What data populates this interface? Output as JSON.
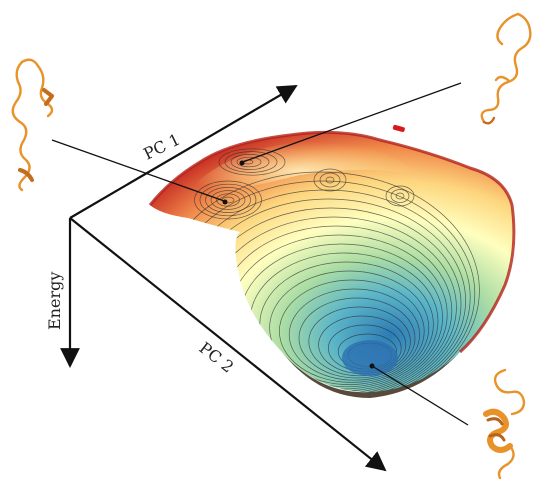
{
  "axes": {
    "pc1_label": "PC 1",
    "pc2_label": "PC 2",
    "energy_label": "Energy"
  },
  "colors": {
    "axis": "#111111",
    "protein": "#e8922a",
    "protein_dark": "#b8621a",
    "surface_low": "#2c7bb6",
    "surface_mid": "#ffffbf",
    "surface_high": "#d7191c"
  },
  "structures": [
    {
      "name": "unfolded-conformation-left",
      "state": "extended coil"
    },
    {
      "name": "unfolded-conformation-right",
      "state": "extended coil"
    },
    {
      "name": "folded-conformation",
      "state": "helical hairpin"
    }
  ]
}
